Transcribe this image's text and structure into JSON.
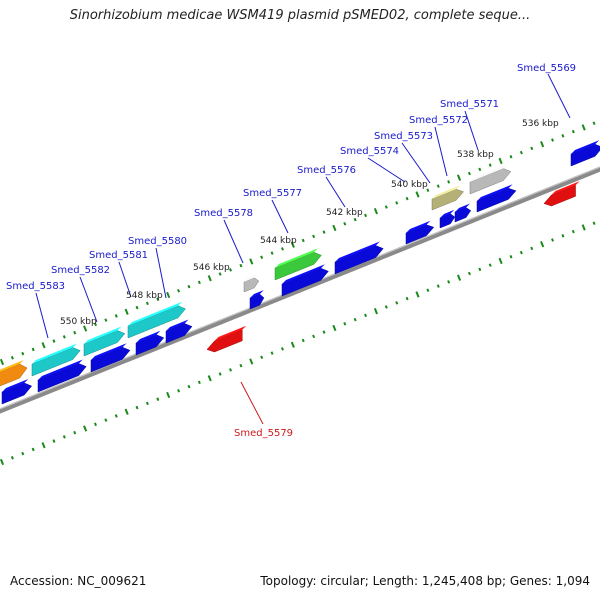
{
  "title": "Sinorhizobium medicae WSM419 plasmid pSMED02, complete seque...",
  "footer": {
    "accession": "Accession: NC_009621",
    "summary": "Topology: circular; Length: 1,245,408 bp; Genes: 1,094"
  },
  "colors": {
    "forward_gene": "#0a0ad8",
    "reverse_gene": "#e01010",
    "cyan_feature": "#1ec8c8",
    "green_feature": "#3cc83c",
    "khaki_feature": "#b4b078",
    "gray_feature": "#b8b8b8",
    "orange_feature": "#f08a10",
    "backbone": "#808080",
    "tick": "#1a8a1a",
    "label_forward": "#1a1acc",
    "label_reverse": "#cc1a1a"
  },
  "kbp_ticks": [
    "536 kbp",
    "538 kbp",
    "540 kbp",
    "542 kbp",
    "544 kbp",
    "546 kbp",
    "548 kbp",
    "550 kbp"
  ],
  "gene_labels": [
    {
      "text": "Smed_5569",
      "strand": "forward"
    },
    {
      "text": "Smed_5571",
      "strand": "forward"
    },
    {
      "text": "Smed_5572",
      "strand": "forward"
    },
    {
      "text": "Smed_5573",
      "strand": "forward"
    },
    {
      "text": "Smed_5574",
      "strand": "forward"
    },
    {
      "text": "Smed_5576",
      "strand": "forward"
    },
    {
      "text": "Smed_5577",
      "strand": "forward"
    },
    {
      "text": "Smed_5578",
      "strand": "forward"
    },
    {
      "text": "Smed_5580",
      "strand": "forward"
    },
    {
      "text": "Smed_5581",
      "strand": "forward"
    },
    {
      "text": "Smed_5582",
      "strand": "forward"
    },
    {
      "text": "Smed_5583",
      "strand": "forward"
    },
    {
      "text": "Smed_5579",
      "strand": "reverse"
    }
  ]
}
